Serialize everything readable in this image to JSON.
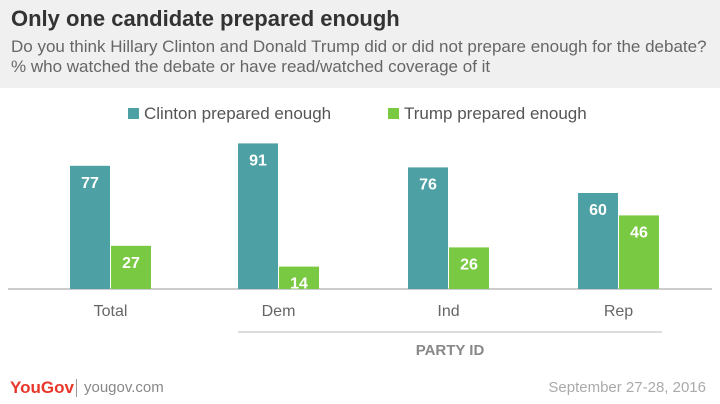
{
  "header": {
    "title": "Only one candidate prepared enough",
    "subtitle": "Do you think Hillary Clinton and Donald Trump did or did not prepare enough for the debate? % who watched the debate or have read/watched coverage of it"
  },
  "chart_data": {
    "type": "bar",
    "categories": [
      "Total",
      "Dem",
      "Ind",
      "Rep"
    ],
    "series": [
      {
        "name": "Clinton prepared enough",
        "values": [
          77,
          91,
          76,
          60
        ],
        "color": "#4da0a3"
      },
      {
        "name": "Trump prepared enough",
        "values": [
          27,
          14,
          26,
          46
        ],
        "color": "#7ac943"
      }
    ],
    "ylim": [
      0,
      100
    ],
    "grid": false,
    "legend": "top",
    "group_label": "PARTY ID"
  },
  "footer": {
    "brand": "YouGov",
    "url": "yougov.com",
    "date": "September 27-28, 2016"
  }
}
